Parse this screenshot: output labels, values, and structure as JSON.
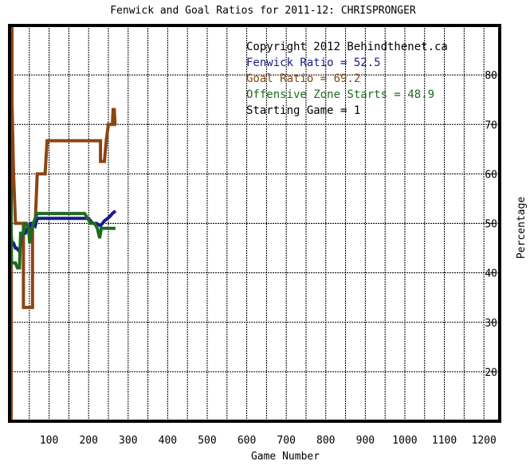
{
  "chart_data": {
    "type": "line",
    "title": "Fenwick and Goal Ratios for 2011-12: CHRISPRONGER",
    "xlabel": "Game Number",
    "ylabel": "Percentage",
    "xlim": [
      0,
      1240
    ],
    "ylim": [
      10,
      90
    ],
    "x_ticks": [
      "100",
      "200",
      "300",
      "400",
      "500",
      "600",
      "700",
      "800",
      "900",
      "1000",
      "1100",
      "1200"
    ],
    "y_ticks": [
      "20",
      "30",
      "40",
      "50",
      "60",
      "70",
      "80"
    ],
    "grid": true,
    "y_axis_side": "right",
    "annotations": [
      "Copyright 2012 Behindthenet.ca",
      "Fenwick Ratio = 52.5",
      "Goal Ratio = 69.2",
      "Offensive Zone Starts = 48.9",
      "Starting Game = 1"
    ],
    "annotation_colors": [
      "#000000",
      "#1a1a8c",
      "#8b4513",
      "#1e6b1e",
      "#000000"
    ],
    "series": [
      {
        "key": "goal",
        "color": "#8b4513",
        "points": [
          [
            1,
            10
          ],
          [
            4,
            10
          ],
          [
            4,
            90
          ],
          [
            6,
            90
          ],
          [
            6,
            75
          ],
          [
            10,
            60
          ],
          [
            15,
            50
          ],
          [
            20,
            50
          ],
          [
            30,
            50
          ],
          [
            35,
            50
          ],
          [
            35,
            33
          ],
          [
            55,
            33
          ],
          [
            58,
            33
          ],
          [
            58,
            50
          ],
          [
            65,
            50
          ],
          [
            70,
            60
          ],
          [
            80,
            60
          ],
          [
            90,
            60
          ],
          [
            95,
            66.7
          ],
          [
            100,
            66.7
          ],
          [
            130,
            66.7
          ],
          [
            160,
            66.7
          ],
          [
            200,
            66.7
          ],
          [
            230,
            66.7
          ],
          [
            230,
            62.5
          ],
          [
            240,
            62.5
          ],
          [
            245,
            67
          ],
          [
            250,
            70
          ],
          [
            255,
            70
          ],
          [
            260,
            70
          ],
          [
            262,
            73
          ],
          [
            265,
            73
          ],
          [
            267,
            70
          ],
          [
            270,
            70
          ]
        ]
      },
      {
        "key": "fenwick",
        "color": "#1a1a8c",
        "points": [
          [
            1,
            50
          ],
          [
            6,
            46
          ],
          [
            10,
            46
          ],
          [
            15,
            45
          ],
          [
            18,
            45
          ],
          [
            23,
            44.5
          ],
          [
            26,
            44.5
          ],
          [
            30,
            48
          ],
          [
            40,
            48
          ],
          [
            45,
            49
          ],
          [
            50,
            49
          ],
          [
            55,
            50
          ],
          [
            60,
            50
          ],
          [
            65,
            49.5
          ],
          [
            70,
            51
          ],
          [
            80,
            51
          ],
          [
            90,
            51
          ],
          [
            100,
            51
          ],
          [
            120,
            51
          ],
          [
            150,
            51
          ],
          [
            180,
            51
          ],
          [
            200,
            51
          ],
          [
            210,
            50
          ],
          [
            215,
            50
          ],
          [
            220,
            50
          ],
          [
            230,
            49.5
          ],
          [
            235,
            50
          ],
          [
            240,
            50.5
          ],
          [
            248,
            51
          ],
          [
            255,
            51.5
          ],
          [
            260,
            52
          ],
          [
            268,
            52.5
          ]
        ]
      },
      {
        "key": "zone",
        "color": "#1e6b1e",
        "points": [
          [
            1,
            57
          ],
          [
            3,
            57
          ],
          [
            5,
            42
          ],
          [
            10,
            42
          ],
          [
            15,
            42
          ],
          [
            20,
            41
          ],
          [
            25,
            41
          ],
          [
            28,
            48
          ],
          [
            35,
            48
          ],
          [
            38,
            50
          ],
          [
            43,
            50
          ],
          [
            48,
            49
          ],
          [
            51,
            46
          ],
          [
            54,
            48
          ],
          [
            57,
            49
          ],
          [
            60,
            50
          ],
          [
            65,
            51
          ],
          [
            70,
            52
          ],
          [
            80,
            52
          ],
          [
            100,
            52
          ],
          [
            130,
            52
          ],
          [
            150,
            52
          ],
          [
            170,
            52
          ],
          [
            190,
            52
          ],
          [
            205,
            50
          ],
          [
            215,
            50
          ],
          [
            222,
            49
          ],
          [
            228,
            47
          ],
          [
            232,
            49
          ],
          [
            240,
            49
          ],
          [
            250,
            49
          ],
          [
            260,
            49
          ],
          [
            268,
            49
          ]
        ]
      }
    ]
  }
}
